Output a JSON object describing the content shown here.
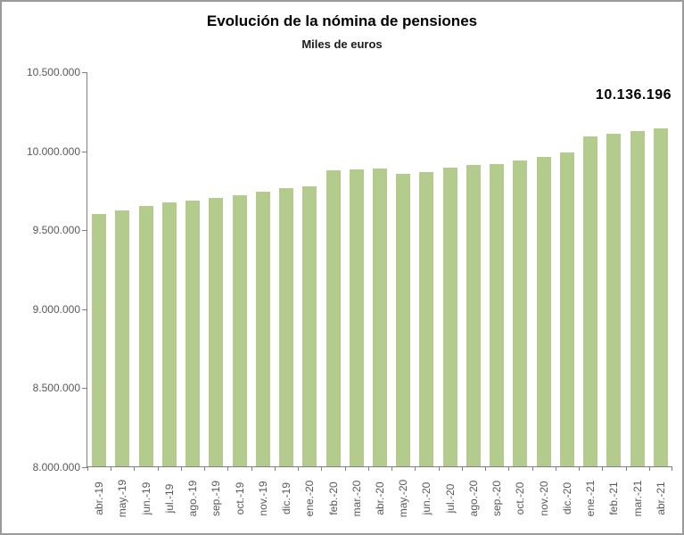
{
  "chart": {
    "title": "Evolución de la nómina de pensiones",
    "subtitle": "Miles de euros",
    "last_value_label": "10.136.196"
  },
  "chart_data": {
    "type": "bar",
    "title": "Evolución de la nómina de pensiones",
    "subtitle": "Miles de euros",
    "ylabel": "",
    "xlabel": "",
    "categories": [
      "abr.-19",
      "may.-19",
      "jun.-19",
      "jul.-19",
      "ago.-19",
      "sep.-19",
      "oct.-19",
      "nov.-19",
      "dic.-19",
      "ene.-20",
      "feb.-20",
      "mar.-20",
      "abr.-20",
      "may.-20",
      "jun.-20",
      "jul.-20",
      "ago.-20",
      "sep.-20",
      "oct.-20",
      "nov.-20",
      "dic.-20",
      "ene.-21",
      "feb.-21",
      "mar.-21",
      "abr.-21"
    ],
    "values": [
      9596000,
      9617000,
      9646000,
      9668000,
      9684000,
      9697000,
      9713000,
      9736000,
      9762000,
      9770000,
      9874000,
      9881000,
      9886000,
      9850000,
      9863000,
      9889000,
      9905000,
      9916000,
      9934000,
      9956000,
      9988000,
      10090000,
      10104000,
      10120000,
      10136196
    ],
    "ylim": [
      8000000,
      10500000
    ],
    "ytick_values": [
      10500000,
      10000000,
      9500000,
      9000000,
      8500000,
      8000000
    ],
    "ytick_labels": [
      "10.500.000",
      "10.000.000",
      "9.500.000",
      "9.000.000",
      "8.500.000",
      "8.000.000"
    ],
    "data_label": {
      "text": "10.136.196",
      "index": 24
    },
    "grid": false,
    "legend": false,
    "colors": {
      "bar": "#b3cb8d",
      "axis": "#808080",
      "tick_text": "#595959",
      "title_text": "#000000"
    }
  }
}
